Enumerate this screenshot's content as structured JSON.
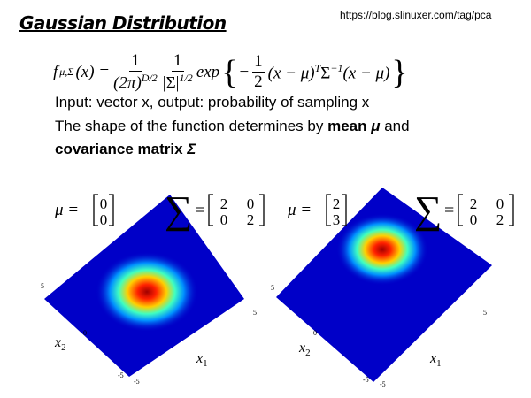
{
  "header": {
    "title": "Gaussian Distribution",
    "source": "https://blog.slinuxer.com/tag/pca"
  },
  "formula": {
    "name": "f",
    "subscript": "μ,Σ",
    "args": "(x) =",
    "frac1": {
      "num": "1",
      "den": "(2π)",
      "den_exp": "D/2"
    },
    "frac2": {
      "num": "1",
      "den": "|Σ|",
      "den_exp": "1/2"
    },
    "func": "exp",
    "open_brace": "{",
    "minus": "−",
    "frac3": {
      "num": "1",
      "den": "2"
    },
    "body": "(x − μ)",
    "body_exp": "T",
    "sigma": "Σ",
    "sigma_exp": "−1",
    "tail": "(x − μ)",
    "close_brace": "}"
  },
  "text": {
    "line1": "Input: vector x, output: probability of sampling x",
    "line2": {
      "plain": "The shape of the function determines by ",
      "bold": "mean",
      "symbol": "μ",
      "end": " and"
    },
    "line3": {
      "bold": "covariance matrix",
      "symbol": "Σ"
    }
  },
  "plots": [
    {
      "mu_label": "μ =",
      "mu": [
        0,
        0
      ],
      "sigma_symbol": "∑",
      "equals": "=",
      "sigma": [
        2,
        0,
        0,
        2
      ],
      "x2_ticks": [
        5,
        0,
        -5
      ],
      "x1_ticks": [
        -5,
        5
      ],
      "x1_label": {
        "name": "x",
        "sub": "1"
      },
      "x2_label": {
        "name": "x",
        "sub": "2"
      }
    },
    {
      "mu_label": "μ =",
      "mu": [
        2,
        3
      ],
      "sigma_symbol": "∑",
      "equals": "=",
      "sigma": [
        2,
        0,
        0,
        2
      ],
      "x2_ticks": [
        5,
        0,
        -5
      ],
      "x1_ticks": [
        -5,
        5
      ],
      "x1_label": {
        "name": "x",
        "sub": "1"
      },
      "x2_label": {
        "name": "x",
        "sub": "2"
      }
    }
  ]
}
